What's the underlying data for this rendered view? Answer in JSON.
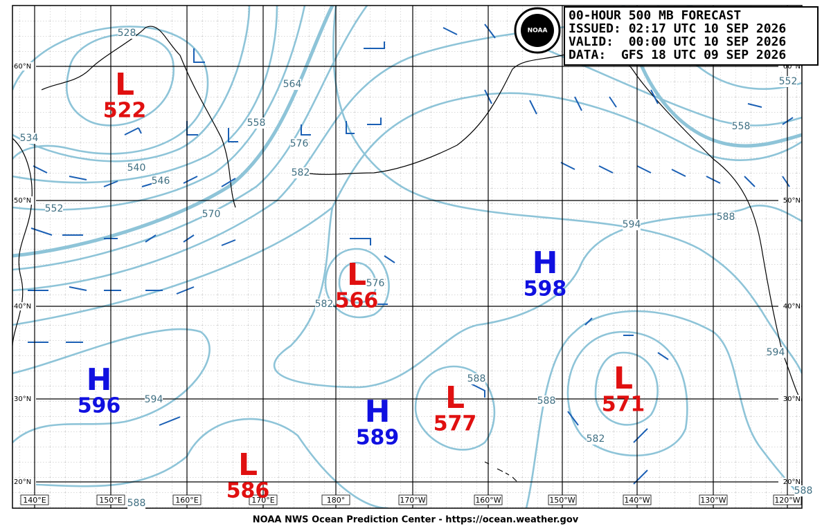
{
  "header": {
    "title": "00-HOUR 500 MB FORECAST",
    "issued": "ISSUED: 02:17 UTC 10 SEP 2026",
    "valid": "VALID:  00:00 UTC 10 SEP 2026",
    "data": "DATA:  GFS 18 UTC 09 SEP 2026"
  },
  "logo": "NOAA",
  "latitudes": [
    "60°N",
    "50°N",
    "40°N",
    "30°N",
    "20°N"
  ],
  "longitudes": [
    "140°E",
    "150°E",
    "160°E",
    "170°E",
    "180°",
    "170°W",
    "160°W",
    "150°W",
    "140°W",
    "130°W",
    "120°W"
  ],
  "centers": [
    {
      "type": "L",
      "value": 522
    },
    {
      "type": "L",
      "value": 566
    },
    {
      "type": "H",
      "value": 598
    },
    {
      "type": "H",
      "value": 596
    },
    {
      "type": "L",
      "value": 571
    },
    {
      "type": "L",
      "value": 577
    },
    {
      "type": "H",
      "value": 589
    },
    {
      "type": "L",
      "value": 586
    }
  ],
  "contour_labels": [
    528,
    534,
    540,
    546,
    552,
    558,
    564,
    570,
    576,
    582,
    594,
    588,
    558,
    552,
    594,
    588,
    582,
    576,
    588,
    588,
    582,
    594,
    588
  ],
  "footer": "NOAA NWS Ocean Prediction Center - https://ocean.weather.gov"
}
